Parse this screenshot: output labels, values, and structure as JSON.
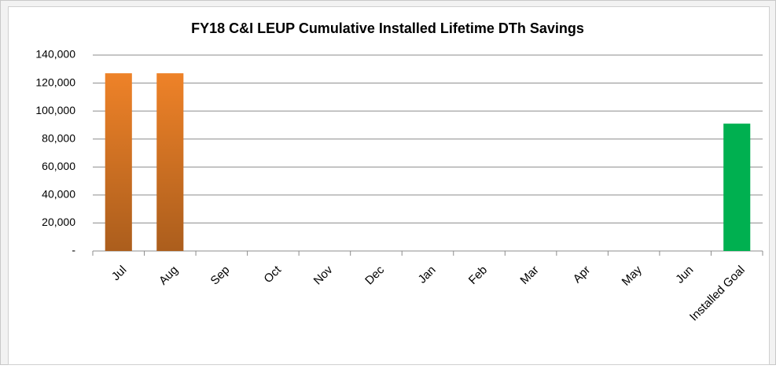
{
  "chart_data": {
    "type": "bar",
    "title": "FY18 C&I LEUP Cumulative Installed Lifetime DTh Savings",
    "categories": [
      "Jul",
      "Aug",
      "Sep",
      "Oct",
      "Nov",
      "Dec",
      "Jan",
      "Feb",
      "Mar",
      "Apr",
      "May",
      "Jun",
      "Installed Goal"
    ],
    "values": [
      127000,
      127000,
      0,
      0,
      0,
      0,
      0,
      0,
      0,
      0,
      0,
      0,
      91000
    ],
    "colors": [
      "#ee8228",
      "#ee8228",
      "#ee8228",
      "#ee8228",
      "#ee8228",
      "#ee8228",
      "#ee8228",
      "#ee8228",
      "#ee8228",
      "#ee8228",
      "#ee8228",
      "#ee8228",
      "#00b050"
    ],
    "ylim": [
      0,
      140000
    ],
    "yticks": [
      {
        "value": 0,
        "label": "-"
      },
      {
        "value": 20000,
        "label": "20,000"
      },
      {
        "value": 40000,
        "label": "40,000"
      },
      {
        "value": 60000,
        "label": "60,000"
      },
      {
        "value": 80000,
        "label": "80,000"
      },
      {
        "value": 100000,
        "label": "100,000"
      },
      {
        "value": 120000,
        "label": "120,000"
      },
      {
        "value": 140000,
        "label": "140,000"
      }
    ],
    "grid": true
  }
}
